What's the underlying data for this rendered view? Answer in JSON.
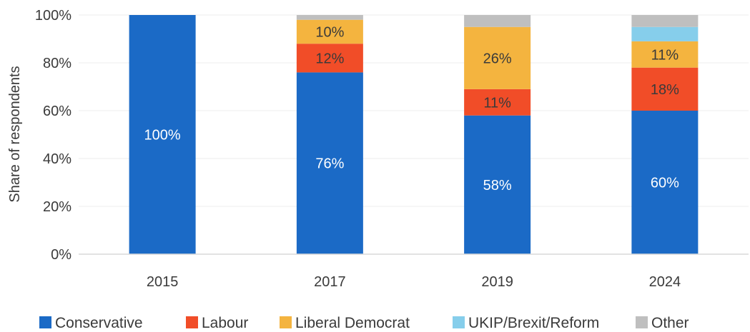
{
  "chart_data": {
    "type": "bar",
    "stacked": true,
    "categories": [
      "2015",
      "2017",
      "2019",
      "2024"
    ],
    "series": [
      {
        "name": "Conservative",
        "color": "#1b6ac6",
        "values": [
          100,
          76,
          58,
          60
        ],
        "labels": [
          "100%",
          "76%",
          "58%",
          "60%"
        ],
        "label_color": "#ffffff"
      },
      {
        "name": "Labour",
        "color": "#f14d28",
        "values": [
          0,
          12,
          11,
          18
        ],
        "labels": [
          "",
          "12%",
          "11%",
          "18%"
        ],
        "label_color": "#3a3a3a"
      },
      {
        "name": "Liberal Democrat",
        "color": "#f4b43f",
        "values": [
          0,
          10,
          26,
          11
        ],
        "labels": [
          "",
          "10%",
          "26%",
          "11%"
        ],
        "label_color": "#3a3a3a"
      },
      {
        "name": "UKIP/Brexit/Reform",
        "color": "#86ceeb",
        "values": [
          0,
          0,
          0,
          6
        ],
        "labels": [
          "",
          "",
          "",
          ""
        ],
        "label_color": "#3a3a3a"
      },
      {
        "name": "Other",
        "color": "#bfbfbf",
        "values": [
          0,
          2,
          5,
          5
        ],
        "labels": [
          "",
          "",
          "",
          ""
        ],
        "label_color": "#3a3a3a"
      }
    ],
    "ylabel": "Share of respondents",
    "xlabel": "",
    "ylim": [
      0,
      100
    ],
    "yticks": [
      0,
      20,
      40,
      60,
      80,
      100
    ],
    "ytick_labels": [
      "0%",
      "20%",
      "40%",
      "60%",
      "80%",
      "100%"
    ],
    "grid": true,
    "legend_position": "bottom"
  }
}
